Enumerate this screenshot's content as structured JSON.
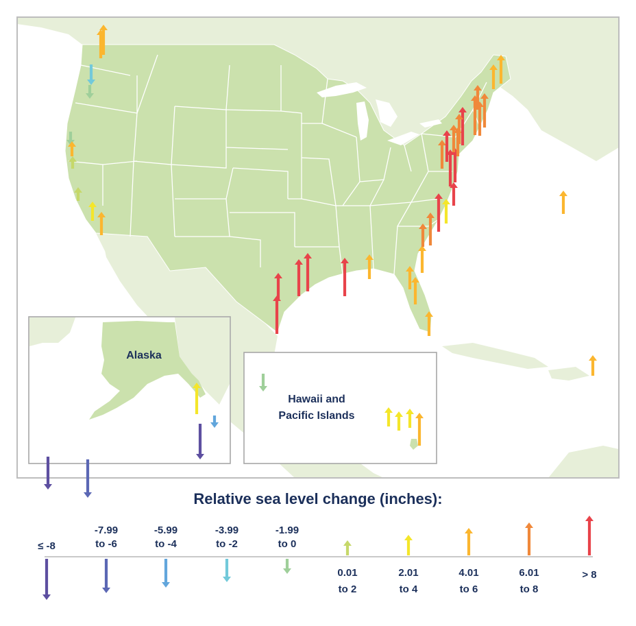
{
  "insets": {
    "alaska": "Alaska",
    "hawaii_line1": "Hawaii and",
    "hawaii_line2": "Pacific Islands"
  },
  "legend": {
    "title": "Relative sea level change (inches):",
    "classes": [
      {
        "id": "c1",
        "direction": "down",
        "color": "#5d4fa0",
        "lines": [
          "≤ -8"
        ]
      },
      {
        "id": "c2",
        "direction": "down",
        "color": "#5b67b4",
        "lines": [
          "-7.99",
          "to -6"
        ]
      },
      {
        "id": "c3",
        "direction": "down",
        "color": "#62a6dc",
        "lines": [
          "-5.99",
          "to -4"
        ]
      },
      {
        "id": "c4",
        "direction": "down",
        "color": "#72c9da",
        "lines": [
          "-3.99",
          "to -2"
        ]
      },
      {
        "id": "c5",
        "direction": "down",
        "color": "#9fcf9a",
        "lines": [
          "-1.99",
          "to 0"
        ]
      },
      {
        "id": "c6",
        "direction": "up",
        "color": "#c6d86a",
        "lines": [
          "0.01",
          "to 2"
        ]
      },
      {
        "id": "c7",
        "direction": "up",
        "color": "#f4e62a",
        "lines": [
          "2.01",
          "to 4"
        ]
      },
      {
        "id": "c8",
        "direction": "up",
        "color": "#fbb62f",
        "lines": [
          "4.01",
          "to 6"
        ]
      },
      {
        "id": "c9",
        "direction": "up",
        "color": "#f0883a",
        "lines": [
          "6.01",
          "to 8"
        ]
      },
      {
        "id": "c10",
        "direction": "up",
        "color": "#e8434a",
        "lines": [
          "> 8"
        ]
      }
    ]
  },
  "stations": [
    {
      "region": "West Coast",
      "class": "c8"
    },
    {
      "region": "West Coast",
      "class": "c8"
    },
    {
      "region": "West Coast",
      "class": "c4"
    },
    {
      "region": "West Coast",
      "class": "c5"
    },
    {
      "region": "West Coast",
      "class": "c5"
    },
    {
      "region": "West Coast",
      "class": "c8"
    },
    {
      "region": "West Coast",
      "class": "c6"
    },
    {
      "region": "West Coast",
      "class": "c6"
    },
    {
      "region": "West Coast",
      "class": "c7"
    },
    {
      "region": "West Coast",
      "class": "c8"
    },
    {
      "region": "Gulf Coast",
      "class": "c10"
    },
    {
      "region": "Gulf Coast",
      "class": "c10"
    },
    {
      "region": "Gulf Coast",
      "class": "c10"
    },
    {
      "region": "Gulf Coast",
      "class": "c10"
    },
    {
      "region": "Gulf Coast",
      "class": "c10"
    },
    {
      "region": "Gulf Coast",
      "class": "c8"
    },
    {
      "region": "Southeast",
      "class": "c8"
    },
    {
      "region": "Southeast",
      "class": "c8"
    },
    {
      "region": "Southeast",
      "class": "c8"
    },
    {
      "region": "Southeast",
      "class": "c8"
    },
    {
      "region": "Southeast",
      "class": "c9"
    },
    {
      "region": "Southeast",
      "class": "c9"
    },
    {
      "region": "Southeast",
      "class": "c10"
    },
    {
      "region": "Southeast",
      "class": "c7"
    },
    {
      "region": "Northeast",
      "class": "c9"
    },
    {
      "region": "Northeast",
      "class": "c10"
    },
    {
      "region": "Northeast",
      "class": "c10"
    },
    {
      "region": "Northeast",
      "class": "c10"
    },
    {
      "region": "Northeast",
      "class": "c9"
    },
    {
      "region": "Northeast",
      "class": "c10"
    },
    {
      "region": "Northeast",
      "class": "c9"
    },
    {
      "region": "Northeast",
      "class": "c10"
    },
    {
      "region": "Northeast",
      "class": "c9"
    },
    {
      "region": "Northeast",
      "class": "c9"
    },
    {
      "region": "Northeast",
      "class": "c9"
    },
    {
      "region": "Northeast",
      "class": "c9"
    },
    {
      "region": "Northeast",
      "class": "c9"
    },
    {
      "region": "Northeast",
      "class": "c8"
    },
    {
      "region": "Northeast",
      "class": "c8"
    },
    {
      "region": "Northeast",
      "class": "c8"
    },
    {
      "region": "Atlantic",
      "class": "c8"
    },
    {
      "region": "Caribbean",
      "class": "c7"
    },
    {
      "region": "Alaska",
      "class": "c2"
    },
    {
      "region": "Alaska",
      "class": "c1"
    },
    {
      "region": "Alaska",
      "class": "c1"
    },
    {
      "region": "Alaska",
      "class": "c3"
    },
    {
      "region": "Alaska",
      "class": "c5"
    },
    {
      "region": "Hawaii and Pacific Islands",
      "class": "c7"
    },
    {
      "region": "Hawaii and Pacific Islands",
      "class": "c7"
    },
    {
      "region": "Hawaii and Pacific Islands",
      "class": "c7"
    },
    {
      "region": "Hawaii and Pacific Islands",
      "class": "c8"
    },
    {
      "region": "Hawaii and Pacific Islands",
      "class": "c9"
    }
  ]
}
